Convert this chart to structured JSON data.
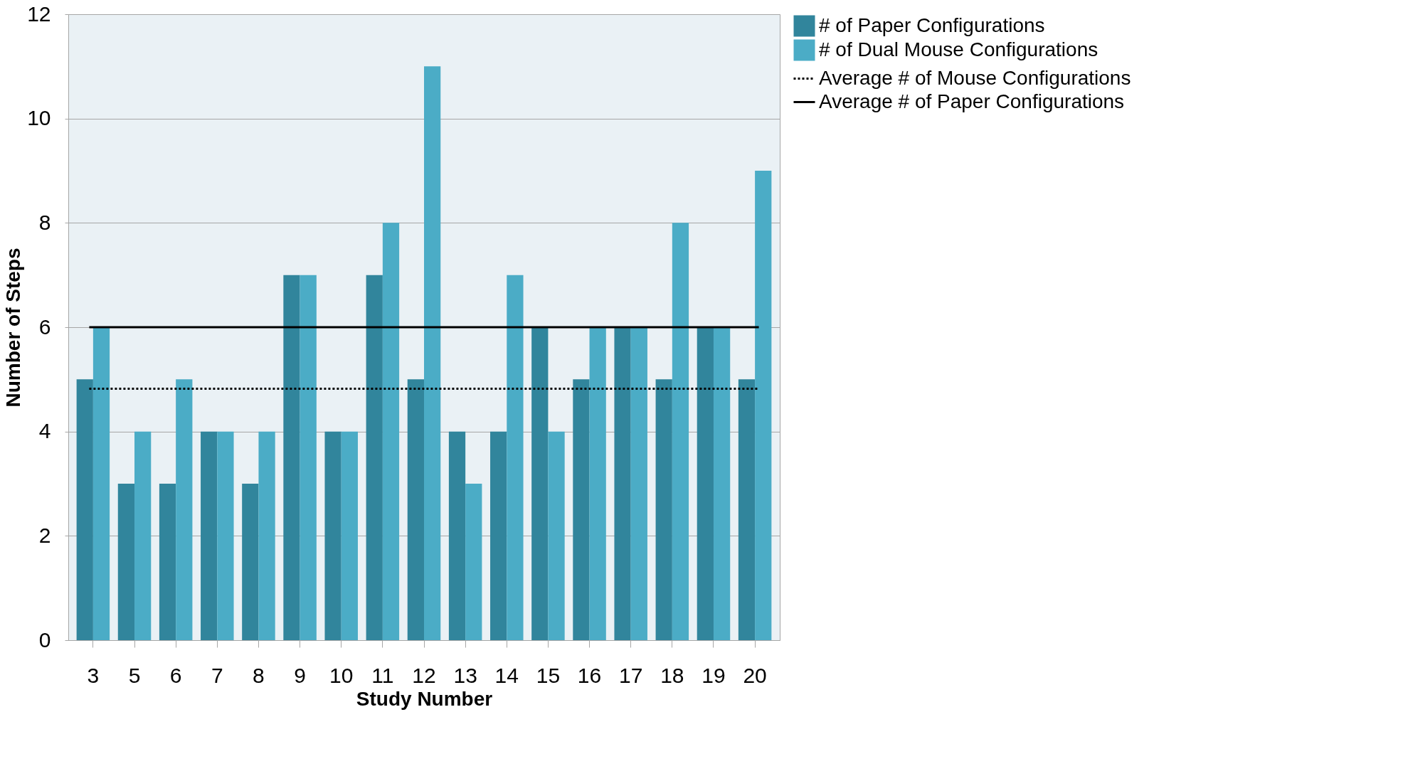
{
  "chart_data": {
    "type": "bar",
    "xlabel": "Study Number",
    "ylabel": "Number of Steps",
    "categories": [
      "3",
      "5",
      "6",
      "7",
      "8",
      "9",
      "10",
      "11",
      "12",
      "13",
      "14",
      "15",
      "16",
      "17",
      "18",
      "19",
      "20"
    ],
    "series": [
      {
        "name": "# of Paper Configurations",
        "color": "#31859c",
        "values": [
          5,
          3,
          3,
          4,
          3,
          7,
          4,
          7,
          5,
          4,
          4,
          6,
          5,
          6,
          5,
          6,
          5
        ]
      },
      {
        "name": "# of Dual Mouse Configurations",
        "color": "#4bacc6",
        "values": [
          6,
          4,
          5,
          4,
          4,
          7,
          4,
          8,
          11,
          3,
          7,
          4,
          6,
          6,
          8,
          6,
          9
        ]
      }
    ],
    "ref_lines": [
      {
        "axis": "y",
        "value": 4.82,
        "label": "Average # of Mouse Configurations",
        "color": "#000000",
        "line_style": "dotted"
      },
      {
        "axis": "y",
        "value": 6,
        "label": "Average # of Paper Configurations",
        "color": "#000000",
        "line_style": "solid"
      }
    ],
    "ylim": [
      0,
      12
    ],
    "yticks": [
      0,
      2,
      4,
      6,
      8,
      10,
      12
    ],
    "grid": "y",
    "legend": "right"
  }
}
